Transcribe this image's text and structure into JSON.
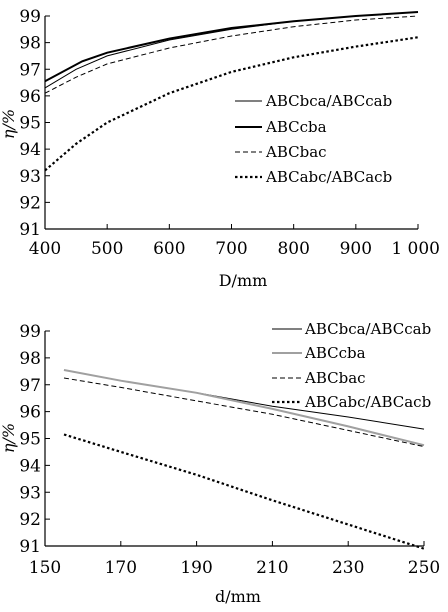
{
  "chart_data": [
    {
      "type": "line",
      "xlabel": "D/mm",
      "ylabel": "η/%",
      "xlim": [
        400,
        1000
      ],
      "ylim": [
        91,
        99
      ],
      "xticks": [
        "400",
        "500",
        "600",
        "700",
        "800",
        "900",
        "1 000"
      ],
      "yticks": [
        "91",
        "92",
        "93",
        "94",
        "95",
        "96",
        "97",
        "98",
        "99"
      ],
      "legend_position": "right",
      "series": [
        {
          "name": "ABCbca/ABCcab",
          "style": "thin-solid",
          "color": "#000000",
          "x": [
            400,
            450,
            500,
            600,
            700,
            800,
            900,
            1000
          ],
          "y": [
            96.3,
            97.0,
            97.5,
            98.1,
            98.5,
            98.8,
            99.0,
            99.15
          ]
        },
        {
          "name": "ABCcba",
          "style": "thick-solid",
          "color": "#000000",
          "x": [
            400,
            460,
            500,
            600,
            700,
            800,
            900,
            1000
          ],
          "y": [
            96.55,
            97.3,
            97.62,
            98.15,
            98.55,
            98.8,
            99.0,
            99.15
          ]
        },
        {
          "name": "ABCbac",
          "style": "thin-dashed",
          "color": "#000000",
          "x": [
            400,
            450,
            500,
            600,
            700,
            800,
            900,
            1000
          ],
          "y": [
            96.1,
            96.7,
            97.2,
            97.8,
            98.25,
            98.6,
            98.85,
            99.0
          ]
        },
        {
          "name": "ABCabc/ABCacb",
          "style": "thick-dotted",
          "color": "#000000",
          "x": [
            400,
            450,
            500,
            600,
            700,
            800,
            900,
            1000
          ],
          "y": [
            93.2,
            94.2,
            95.0,
            96.1,
            96.9,
            97.45,
            97.85,
            98.2
          ]
        }
      ]
    },
    {
      "type": "line",
      "xlabel": "d/mm",
      "ylabel": "η/%",
      "xlim": [
        150,
        250
      ],
      "ylim": [
        91,
        99
      ],
      "xticks": [
        "150",
        "170",
        "190",
        "210",
        "230",
        "250"
      ],
      "yticks": [
        "91",
        "92",
        "93",
        "94",
        "95",
        "96",
        "97",
        "98",
        "99"
      ],
      "legend_position": "top-right",
      "series": [
        {
          "name": "ABCbca/ABCcab",
          "style": "thin-solid",
          "color": "#000000",
          "x": [
            155,
            170,
            190,
            210,
            230,
            250
          ],
          "y": [
            97.55,
            97.15,
            96.7,
            96.2,
            95.8,
            95.35
          ]
        },
        {
          "name": "ABCcba",
          "style": "thick-solid",
          "color": "#a0a0a0",
          "x": [
            155,
            170,
            190,
            210,
            230,
            250
          ],
          "y": [
            97.55,
            97.15,
            96.7,
            96.1,
            95.45,
            94.75
          ]
        },
        {
          "name": "ABCbac",
          "style": "thin-dashed",
          "color": "#000000",
          "x": [
            155,
            170,
            190,
            210,
            230,
            250
          ],
          "y": [
            97.25,
            96.9,
            96.4,
            95.9,
            95.3,
            94.7
          ]
        },
        {
          "name": "ABCabc/ABCacb",
          "style": "thick-dotted",
          "color": "#000000",
          "x": [
            155,
            170,
            190,
            210,
            230,
            250
          ],
          "y": [
            95.15,
            94.5,
            93.65,
            92.7,
            91.8,
            90.9
          ]
        }
      ]
    }
  ]
}
